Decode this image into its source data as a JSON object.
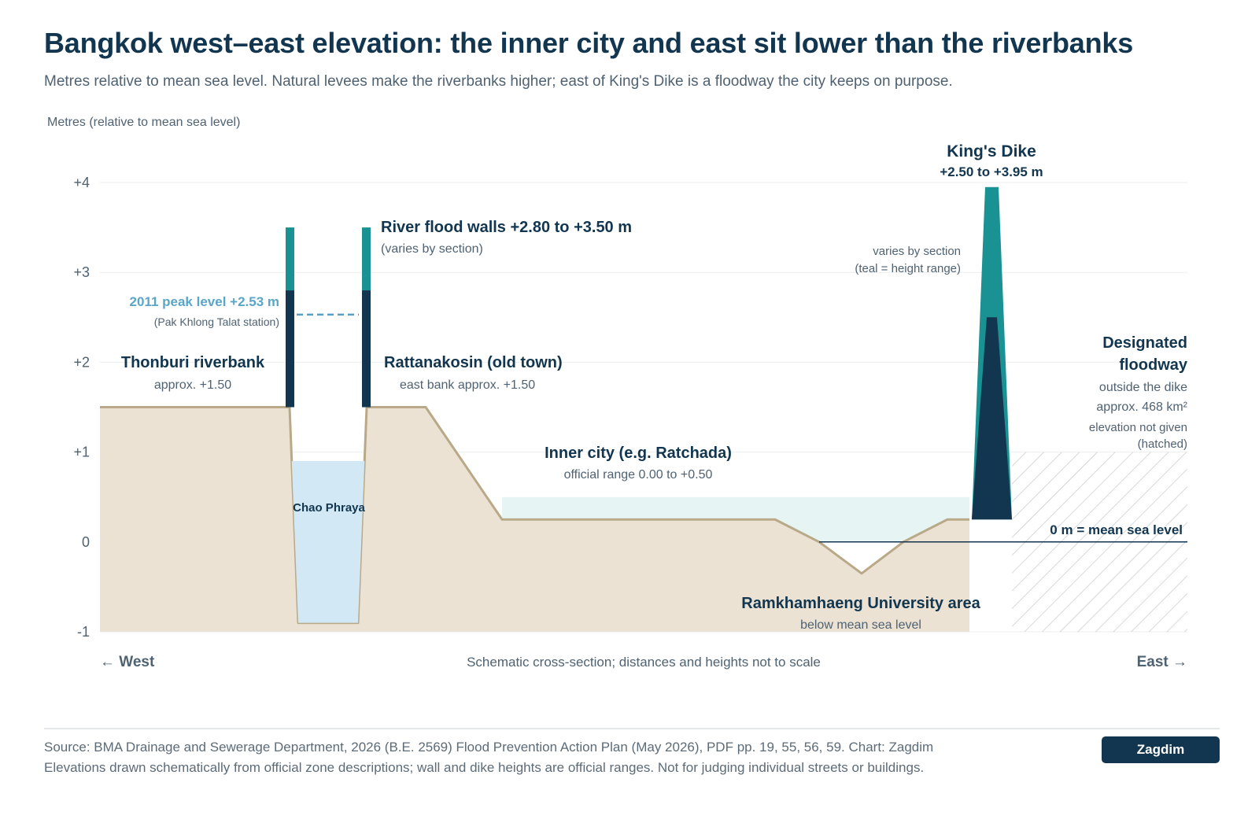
{
  "title": "Bangkok west–east elevation: the inner city and east sit lower than the riverbanks",
  "subtitle": "Metres relative to mean sea level. Natural levees make the riverbanks higher; east of King's Dike is a floodway the city keeps on purpose.",
  "colors": {
    "ground": "#ebe2d4",
    "ground_stroke": "#b9a988",
    "river": "#d2e8f4",
    "wall_dark": "#12364f",
    "teal": "#1a9192",
    "peak_line": "#5a9ec6",
    "inner_band": "#e6f4f4",
    "grid": "#edeef0",
    "hatch": "#c9ccd0"
  },
  "chart_data": {
    "type": "area",
    "y_axis_title": "Metres (relative to mean sea level)",
    "ylim": [
      -1,
      4
    ],
    "y_ticks": [
      {
        "value": 4,
        "label": "+4"
      },
      {
        "value": 3,
        "label": "+3"
      },
      {
        "value": 2,
        "label": "+2"
      },
      {
        "value": 1,
        "label": "+1"
      },
      {
        "value": 0,
        "label": "0"
      },
      {
        "value": -1,
        "label": "-1"
      }
    ],
    "grid": true,
    "schematic": true,
    "profile_elevations_m": [
      1.5,
      1.5,
      -0.9,
      -0.9,
      1.5,
      1.5,
      0.25,
      0.25,
      0.0,
      -0.35,
      0.0,
      0.25,
      0.25
    ],
    "river_water_top_m": 0.9,
    "river_bed_m": -0.9,
    "river_walls": {
      "min": 2.8,
      "max": 3.5,
      "base": 1.5
    },
    "kings_dike": {
      "min": 2.5,
      "max": 3.95,
      "base": 0.25
    },
    "peak_2011_m": 2.53,
    "inner_city_range": [
      0.0,
      0.5
    ],
    "floodway_hatch_top_m": 1.0,
    "annotations": {
      "thonburi_title": "Thonburi riverbank",
      "thonburi_sub": "approx. +1.50",
      "peak_title": "2011 peak level +2.53 m",
      "peak_sub": "(Pak Khlong Talat station)",
      "river_label": "Chao Phraya",
      "walls_title": "River flood walls +2.80 to +3.50 m",
      "walls_sub": "(varies by section)",
      "old_town_title": "Rattanakosin (old town)",
      "old_town_sub": "east bank approx. +1.50",
      "inner_title": "Inner city (e.g. Ratchada)",
      "inner_sub": "official range 0.00 to +0.50",
      "ramkhamhaeng_title": "Ramkhamhaeng University area",
      "ramkhamhaeng_sub": "below mean sea level",
      "dike_title": "King's Dike",
      "dike_range": "+2.50 to +3.95 m",
      "dike_note_1": "varies by section",
      "dike_note_2": "(teal = height range)",
      "floodway_title_1": "Designated",
      "floodway_title_2": "floodway",
      "floodway_sub_1": "outside the dike",
      "floodway_sub_2": "approx. 468 km²",
      "floodway_sub_3": "elevation not given",
      "floodway_sub_4": "(hatched)",
      "msl_label": "0 m = mean sea level"
    },
    "x_axis": {
      "west_label": "← West",
      "east_label": "East →",
      "note": "Schematic cross-section; distances and heights not to scale"
    }
  },
  "footer": {
    "line1": "Source: BMA Drainage and Sewerage Department, 2026 (B.E. 2569) Flood Prevention Action Plan (May 2026), PDF pp. 19, 55, 56, 59. Chart: Zagdim",
    "line2": "Elevations drawn schematically from official zone descriptions; wall and dike heights are official ranges. Not for judging individual streets or buildings.",
    "brand": "Zagdim"
  }
}
